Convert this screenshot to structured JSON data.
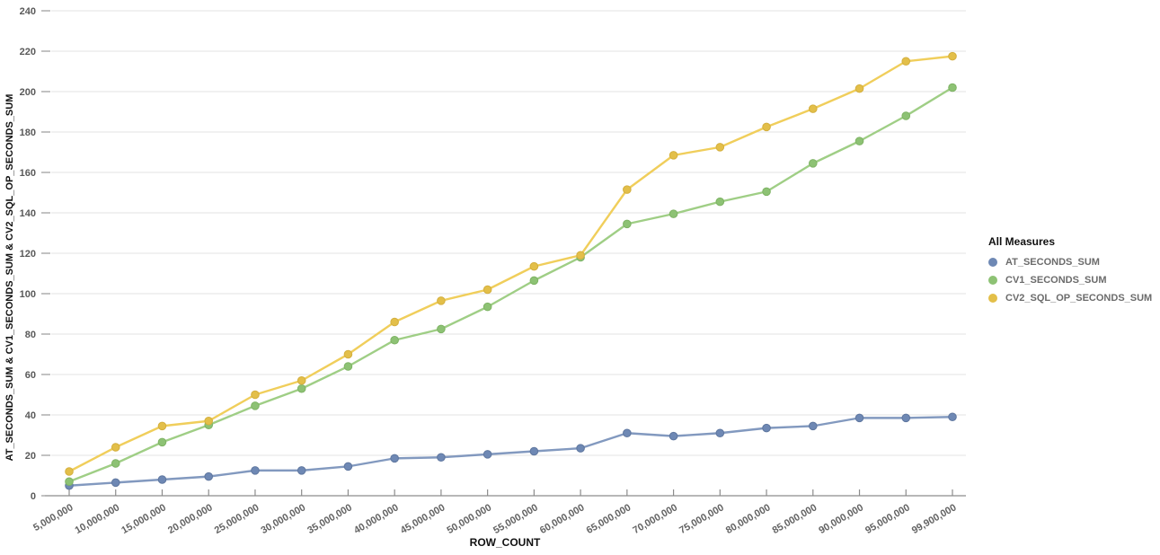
{
  "chart_data": {
    "type": "line",
    "title": "",
    "xlabel": "ROW_COUNT",
    "ylabel": "AT_SECONDS_SUM & CV1_SECONDS_SUM & CV2_SQL_OP_SECONDS_SUM",
    "ylim": [
      0,
      240
    ],
    "y_ticks": [
      0,
      20,
      40,
      60,
      80,
      100,
      120,
      140,
      160,
      180,
      200,
      220,
      240
    ],
    "grid": true,
    "legend": {
      "title": "All Measures",
      "position": "right"
    },
    "categories": [
      "5,000,000",
      "10,000,000",
      "15,000,000",
      "20,000,000",
      "25,000,000",
      "30,000,000",
      "35,000,000",
      "40,000,000",
      "45,000,000",
      "50,000,000",
      "55,000,000",
      "60,000,000",
      "65,000,000",
      "70,000,000",
      "75,000,000",
      "80,000,000",
      "85,000,000",
      "90,000,000",
      "95,000,000",
      "99,900,000"
    ],
    "series": [
      {
        "name": "AT_SECONDS_SUM",
        "color": "#7B93BC",
        "marker_color": "#6E88B4",
        "marker_stroke": "#5F779F",
        "values": [
          5,
          6.5,
          8,
          9.5,
          12.5,
          12.5,
          14.5,
          18.5,
          19,
          20.5,
          22,
          23.5,
          31,
          29.5,
          31,
          33.5,
          34.5,
          38.5,
          38.5,
          39
        ]
      },
      {
        "name": "CV1_SECONDS_SUM",
        "color": "#9ACB7E",
        "marker_color": "#8DC274",
        "marker_stroke": "#7EB364",
        "values": [
          7,
          16,
          26.5,
          35,
          44.5,
          53,
          64,
          77,
          82.5,
          93.5,
          106.5,
          118,
          134.5,
          139.5,
          145.5,
          150.5,
          164.5,
          175.5,
          188,
          202
        ]
      },
      {
        "name": "CV2_SQL_OP_SECONDS_SUM",
        "color": "#EFCB52",
        "marker_color": "#E3BF49",
        "marker_stroke": "#D4AF3E",
        "values": [
          12,
          24,
          34.5,
          37,
          50,
          57,
          70,
          86,
          96.5,
          102,
          113.5,
          119,
          151.5,
          168.5,
          172.5,
          182.5,
          191.5,
          201.5,
          215,
          217.5
        ]
      }
    ],
    "axis_colors": {
      "axis_line": "#8c8c8c",
      "gridline": "#e3e3e3",
      "tick_mark": "#9a9a9a"
    }
  }
}
